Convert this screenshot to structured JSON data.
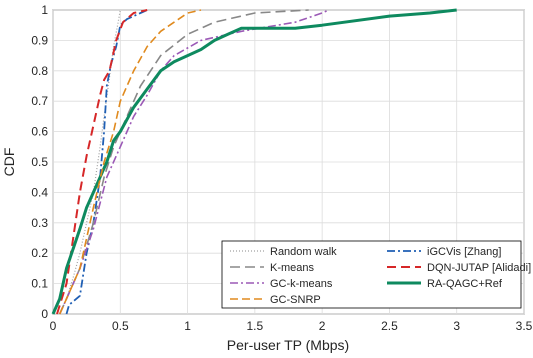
{
  "chart_data": {
    "type": "line",
    "xlabel": "Per-user TP (Mbps)",
    "ylabel": "CDF",
    "xlim": [
      0,
      3.5
    ],
    "ylim": [
      0,
      1
    ],
    "x_ticks": [
      "0",
      "0.5",
      "1",
      "1.5",
      "2",
      "2.5",
      "3",
      "3.5"
    ],
    "y_ticks": [
      "0",
      "0.1",
      "0.2",
      "0.3",
      "0.4",
      "0.5",
      "0.6",
      "0.7",
      "0.8",
      "0.9",
      "1"
    ],
    "grid": true,
    "legend_position": "bottom-right",
    "series": [
      {
        "name": "Random walk",
        "color": "#a0a0a0",
        "dash": "1,2",
        "width": 1.2,
        "points": [
          [
            0.05,
            0
          ],
          [
            0.1,
            0.05
          ],
          [
            0.15,
            0.12
          ],
          [
            0.2,
            0.2
          ],
          [
            0.25,
            0.3
          ],
          [
            0.3,
            0.4
          ],
          [
            0.35,
            0.55
          ],
          [
            0.38,
            0.65
          ],
          [
            0.42,
            0.78
          ],
          [
            0.45,
            0.88
          ],
          [
            0.48,
            0.95
          ],
          [
            0.5,
            1.0
          ]
        ]
      },
      {
        "name": "iGCVis [Zhang]",
        "color": "#1f5fb4",
        "dash": "8,3,2,3",
        "width": 1.8,
        "points": [
          [
            0.1,
            0
          ],
          [
            0.12,
            0.03
          ],
          [
            0.2,
            0.06
          ],
          [
            0.25,
            0.2
          ],
          [
            0.3,
            0.3
          ],
          [
            0.35,
            0.45
          ],
          [
            0.38,
            0.6
          ],
          [
            0.4,
            0.75
          ],
          [
            0.43,
            0.82
          ],
          [
            0.47,
            0.88
          ],
          [
            0.5,
            0.95
          ],
          [
            0.55,
            0.97
          ],
          [
            0.65,
            0.99
          ],
          [
            0.7,
            1.0
          ]
        ]
      },
      {
        "name": "K-means",
        "color": "#888888",
        "dash": "10,5",
        "width": 1.6,
        "points": [
          [
            0.05,
            0
          ],
          [
            0.1,
            0.05
          ],
          [
            0.2,
            0.15
          ],
          [
            0.3,
            0.3
          ],
          [
            0.38,
            0.45
          ],
          [
            0.45,
            0.55
          ],
          [
            0.55,
            0.65
          ],
          [
            0.65,
            0.75
          ],
          [
            0.8,
            0.85
          ],
          [
            1.0,
            0.92
          ],
          [
            1.2,
            0.96
          ],
          [
            1.5,
            0.99
          ],
          [
            1.9,
            1.0
          ]
        ]
      },
      {
        "name": "DQN-JUTAP [Alidadi]",
        "color": "#d62728",
        "dash": "9,5",
        "width": 2,
        "points": [
          [
            0.03,
            0
          ],
          [
            0.1,
            0.1
          ],
          [
            0.15,
            0.25
          ],
          [
            0.2,
            0.4
          ],
          [
            0.25,
            0.52
          ],
          [
            0.3,
            0.62
          ],
          [
            0.35,
            0.72
          ],
          [
            0.38,
            0.77
          ],
          [
            0.42,
            0.8
          ],
          [
            0.47,
            0.9
          ],
          [
            0.52,
            0.96
          ],
          [
            0.6,
            0.99
          ],
          [
            0.7,
            1.0
          ]
        ]
      },
      {
        "name": "GC-k-means",
        "color": "#9b59b6",
        "dash": "8,3,2,3",
        "width": 1.6,
        "points": [
          [
            0.05,
            0
          ],
          [
            0.1,
            0.05
          ],
          [
            0.2,
            0.15
          ],
          [
            0.3,
            0.28
          ],
          [
            0.4,
            0.45
          ],
          [
            0.5,
            0.55
          ],
          [
            0.6,
            0.65
          ],
          [
            0.7,
            0.72
          ],
          [
            0.8,
            0.8
          ],
          [
            0.9,
            0.85
          ],
          [
            1.1,
            0.9
          ],
          [
            1.4,
            0.93
          ],
          [
            1.8,
            0.96
          ],
          [
            2.0,
            0.99
          ],
          [
            2.05,
            1.0
          ]
        ]
      },
      {
        "name": "RA-QAGC+Ref",
        "color": "#0e8a5f",
        "dash": "",
        "width": 3,
        "points": [
          [
            0,
            0
          ],
          [
            0.05,
            0.05
          ],
          [
            0.1,
            0.15
          ],
          [
            0.2,
            0.28
          ],
          [
            0.25,
            0.35
          ],
          [
            0.3,
            0.4
          ],
          [
            0.35,
            0.45
          ],
          [
            0.4,
            0.5
          ],
          [
            0.45,
            0.57
          ],
          [
            0.5,
            0.6
          ],
          [
            0.6,
            0.68
          ],
          [
            0.7,
            0.74
          ],
          [
            0.8,
            0.8
          ],
          [
            0.9,
            0.83
          ],
          [
            1.0,
            0.85
          ],
          [
            1.1,
            0.87
          ],
          [
            1.2,
            0.9
          ],
          [
            1.3,
            0.92
          ],
          [
            1.4,
            0.94
          ],
          [
            1.8,
            0.94
          ],
          [
            2.0,
            0.95
          ],
          [
            2.5,
            0.98
          ],
          [
            2.8,
            0.99
          ],
          [
            3.0,
            1.0
          ]
        ]
      },
      {
        "name": "GC-SNRP",
        "color": "#e08a1e",
        "dash": "8,4",
        "width": 1.6,
        "points": [
          [
            0.05,
            0
          ],
          [
            0.1,
            0.05
          ],
          [
            0.2,
            0.15
          ],
          [
            0.3,
            0.35
          ],
          [
            0.38,
            0.5
          ],
          [
            0.45,
            0.6
          ],
          [
            0.5,
            0.7
          ],
          [
            0.6,
            0.8
          ],
          [
            0.7,
            0.88
          ],
          [
            0.8,
            0.93
          ],
          [
            0.9,
            0.96
          ],
          [
            1.0,
            0.99
          ],
          [
            1.1,
            1.0
          ]
        ]
      }
    ]
  }
}
